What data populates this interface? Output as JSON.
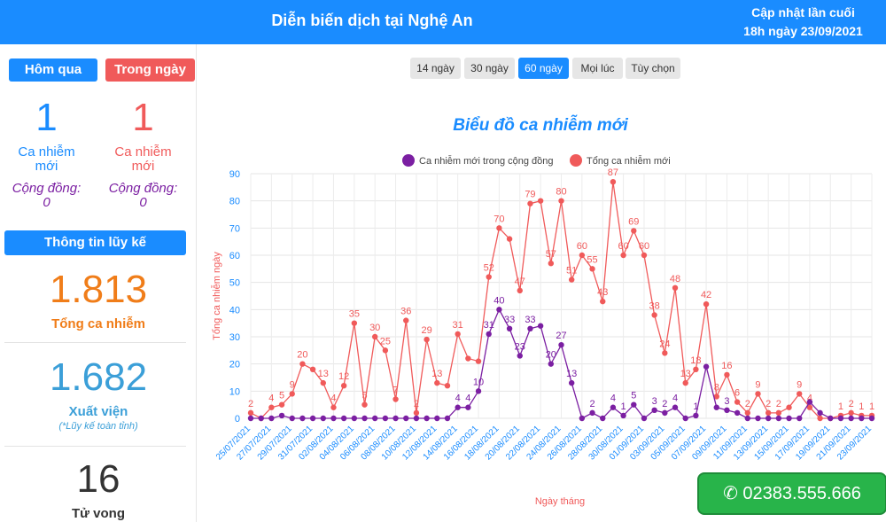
{
  "header": {
    "title": "Diễn biến dịch tại Nghệ An",
    "update_line1": "Cập nhật lần cuối",
    "update_line2": "18h ngày 23/09/2021"
  },
  "sidebar": {
    "yesterday": {
      "tab": "Hôm qua",
      "count": "1",
      "label_line1": "Ca nhiễm",
      "label_line2": "mới",
      "community_label": "Cộng đồng:",
      "community_value": "0"
    },
    "today": {
      "tab": "Trong ngày",
      "count": "1",
      "label_line1": "Ca nhiễm",
      "label_line2": "mới",
      "community_label": "Cộng đồng:",
      "community_value": "0"
    },
    "cumulative_header": "Thông tin lũy kế",
    "total": {
      "value": "1.813",
      "label": "Tổng ca nhiễm"
    },
    "recovered": {
      "value": "1.682",
      "label": "Xuất viện",
      "note": "(*Lũy kế toàn tỉnh)"
    },
    "deaths": {
      "value": "16",
      "label": "Tử vong"
    }
  },
  "range_buttons": [
    "14 ngày",
    "30 ngày",
    "60 ngày",
    "Mọi lúc",
    "Tùy chọn"
  ],
  "active_range": "60 ngày",
  "phone": {
    "icon": "phone-icon",
    "number": "02383.555.666"
  },
  "colors": {
    "brand": "#1a8cff",
    "red": "#f05a5a",
    "purple": "#7b1fa2",
    "orange": "#f07d19",
    "teal": "#3b9fd8",
    "green": "#28b44a"
  },
  "chart_data": {
    "type": "line",
    "title": "Biểu đồ ca nhiễm mới",
    "xlabel": "Ngày tháng",
    "ylabel": "Tổng ca nhiễm ngày",
    "ylim": [
      0,
      90
    ],
    "yticks": [
      0,
      10,
      20,
      30,
      40,
      50,
      60,
      70,
      80,
      90
    ],
    "grid": true,
    "legend_position": "top",
    "x": [
      "25/07/2021",
      "26/07/2021",
      "27/07/2021",
      "28/07/2021",
      "29/07/2021",
      "30/07/2021",
      "31/07/2021",
      "01/08/2021",
      "02/08/2021",
      "03/08/2021",
      "04/08/2021",
      "05/08/2021",
      "06/08/2021",
      "07/08/2021",
      "08/08/2021",
      "09/08/2021",
      "10/08/2021",
      "11/08/2021",
      "12/08/2021",
      "13/08/2021",
      "14/08/2021",
      "15/08/2021",
      "16/08/2021",
      "17/08/2021",
      "18/08/2021",
      "19/08/2021",
      "20/08/2021",
      "21/08/2021",
      "22/08/2021",
      "23/08/2021",
      "24/08/2021",
      "25/08/2021",
      "26/08/2021",
      "27/08/2021",
      "28/08/2021",
      "29/08/2021",
      "30/08/2021",
      "31/08/2021",
      "01/09/2021",
      "02/09/2021",
      "03/09/2021",
      "04/09/2021",
      "05/09/2021",
      "06/09/2021",
      "07/09/2021",
      "08/09/2021",
      "09/09/2021",
      "10/09/2021",
      "11/09/2021",
      "12/09/2021",
      "13/09/2021",
      "14/09/2021",
      "15/09/2021",
      "16/09/2021",
      "17/09/2021",
      "18/09/2021",
      "19/09/2021",
      "20/09/2021",
      "21/09/2021",
      "22/09/2021",
      "23/09/2021"
    ],
    "xtick_labels": [
      "25/07/2021",
      "27/07/2021",
      "29/07/2021",
      "31/07/2021",
      "02/08/2021",
      "04/08/2021",
      "06/08/2021",
      "08/08/2021",
      "10/08/2021",
      "12/08/2021",
      "14/08/2021",
      "16/08/2021",
      "18/08/2021",
      "20/08/2021",
      "22/08/2021",
      "24/08/2021",
      "26/08/2021",
      "28/08/2021",
      "30/08/2021",
      "01/09/2021",
      "03/09/2021",
      "05/09/2021",
      "07/09/2021",
      "09/09/2021",
      "11/09/2021",
      "13/09/2021",
      "15/09/2021",
      "17/09/2021",
      "19/09/2021",
      "21/09/2021",
      "23/09/2021"
    ],
    "series": [
      {
        "name": "Tổng ca nhiễm mới",
        "color": "#f05a5a",
        "values": [
          2,
          0,
          4,
          5,
          9,
          20,
          18,
          13,
          4,
          12,
          35,
          5,
          30,
          25,
          7,
          36,
          2,
          29,
          13,
          12,
          31,
          22,
          21,
          52,
          70,
          66,
          47,
          79,
          80,
          57,
          80,
          51,
          60,
          55,
          43,
          87,
          60,
          69,
          60,
          38,
          24,
          48,
          13,
          18,
          42,
          8,
          16,
          6,
          2,
          9,
          2,
          2,
          4,
          9,
          4,
          0,
          0,
          1,
          2,
          1,
          1
        ],
        "labels": [
          "2",
          "",
          "4",
          "5",
          "9",
          "20",
          "",
          "13",
          "4",
          "12",
          "35",
          "5",
          "30",
          "25",
          "7",
          "36",
          "2",
          "29",
          "13",
          "",
          "31",
          "",
          "",
          "52",
          "70",
          "",
          "47",
          "79",
          "",
          "57",
          "80",
          "51",
          "60",
          "55",
          "43",
          "87",
          "60",
          "69",
          "60",
          "38",
          "24",
          "48",
          "13",
          "18",
          "42",
          "8",
          "16",
          "6",
          "2",
          "9",
          "2",
          "2",
          "",
          "9",
          "4",
          "",
          "",
          "1",
          "2",
          "1",
          "1"
        ]
      },
      {
        "name": "Ca nhiễm mới trong cộng đồng",
        "color": "#7b1fa2",
        "values": [
          0,
          0,
          0,
          1,
          0,
          0,
          0,
          0,
          0,
          0,
          0,
          0,
          0,
          0,
          0,
          0,
          0,
          0,
          0,
          0,
          4,
          4,
          10,
          31,
          40,
          33,
          23,
          33,
          34,
          20,
          27,
          13,
          0,
          2,
          0,
          4,
          1,
          5,
          0,
          3,
          2,
          4,
          0,
          1,
          19,
          4,
          3,
          2,
          0,
          0,
          0,
          0,
          0,
          0,
          6,
          2,
          0,
          0,
          0,
          0,
          0
        ],
        "labels": [
          "",
          "",
          "",
          "",
          "",
          "",
          "",
          "",
          "",
          "",
          "",
          "",
          "",
          "",
          "",
          "",
          "",
          "",
          "",
          "",
          "4",
          "4",
          "10",
          "31",
          "40",
          "33",
          "23",
          "33",
          "",
          "20",
          "27",
          "13",
          "",
          "2",
          "",
          "4",
          "1",
          "5",
          "",
          "3",
          "2",
          "4",
          "",
          "1",
          "",
          "",
          "3",
          "",
          "",
          "",
          "",
          "",
          "",
          "",
          "",
          "",
          "",
          "",
          "",
          "",
          ""
        ]
      }
    ]
  }
}
